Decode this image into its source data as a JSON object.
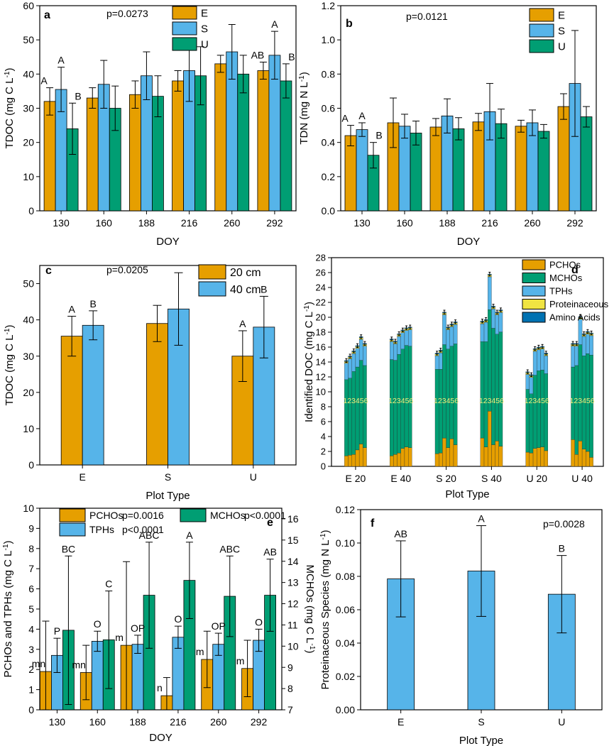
{
  "colors": {
    "E": "#E69F00",
    "S": "#56B4E9",
    "U": "#009E73",
    "PCHOs": "#E69F00",
    "MCHOs": "#009E73",
    "TPHs": "#56B4E9",
    "Proteinaceous": "#F0E442",
    "AminoAcids": "#0072B2"
  },
  "chart_data": [
    {
      "panel": "a",
      "type": "bar",
      "pvalue": "p=0.0273",
      "xlabel": "DOY",
      "ylabel": "TDOC (mg C L",
      "ylabel_sup": "-1",
      "ylabel_end": ")",
      "ylim": [
        0,
        60
      ],
      "yticks": [
        "0",
        "10",
        "20",
        "30",
        "40",
        "50",
        "60"
      ],
      "categories": [
        "130",
        "160",
        "188",
        "216",
        "260",
        "292"
      ],
      "series": [
        {
          "name": "E",
          "values": [
            32,
            33,
            34,
            38,
            43,
            41
          ],
          "errors": [
            4,
            3,
            4,
            3,
            2.5,
            2.5
          ]
        },
        {
          "name": "S",
          "values": [
            35.5,
            37,
            39.5,
            41,
            46.5,
            45.5
          ],
          "errors": [
            6.5,
            7,
            7,
            9,
            8,
            7
          ]
        },
        {
          "name": "U",
          "values": [
            24,
            30,
            33.5,
            39.5,
            40,
            38
          ],
          "errors": [
            7.5,
            6.5,
            6,
            8.5,
            5.5,
            5
          ]
        }
      ],
      "letters": [
        {
          "cat": 0,
          "series": 0,
          "text": "A"
        },
        {
          "cat": 0,
          "series": 1,
          "text": "A"
        },
        {
          "cat": 0,
          "series": 2,
          "text": "B"
        },
        {
          "cat": 5,
          "series": 0,
          "text": "AB"
        },
        {
          "cat": 5,
          "series": 1,
          "text": "A"
        },
        {
          "cat": 5,
          "series": 2,
          "text": "B"
        }
      ]
    },
    {
      "panel": "b",
      "type": "bar",
      "pvalue": "p=0.0121",
      "xlabel": "DOY",
      "ylabel": "TDN (mg N L",
      "ylabel_sup": "-1",
      "ylabel_end": ")",
      "ylim": [
        0,
        1.2
      ],
      "yticks": [
        "0.0",
        "0.2",
        "0.4",
        "0.6",
        "0.8",
        "1.0",
        "1.2"
      ],
      "categories": [
        "130",
        "160",
        "188",
        "216",
        "260",
        "292"
      ],
      "series": [
        {
          "name": "E",
          "values": [
            0.44,
            0.515,
            0.49,
            0.52,
            0.495,
            0.61
          ],
          "errors": [
            0.06,
            0.145,
            0.05,
            0.05,
            0.035,
            0.075
          ]
        },
        {
          "name": "S",
          "values": [
            0.475,
            0.495,
            0.555,
            0.58,
            0.515,
            0.745
          ],
          "errors": [
            0.04,
            0.07,
            0.1,
            0.165,
            0.075,
            0.31
          ]
        },
        {
          "name": "U",
          "values": [
            0.325,
            0.455,
            0.48,
            0.51,
            0.465,
            0.55
          ],
          "errors": [
            0.075,
            0.07,
            0.065,
            0.085,
            0.04,
            0.06
          ]
        }
      ],
      "letters": [
        {
          "cat": 0,
          "series": 0,
          "text": "A"
        },
        {
          "cat": 0,
          "series": 1,
          "text": "A"
        },
        {
          "cat": 0,
          "series": 2,
          "text": "B"
        }
      ]
    },
    {
      "panel": "c",
      "type": "bar",
      "pvalue": "p=0.0205",
      "xlabel": "Plot Type",
      "ylabel": "TDOC (mg C L",
      "ylabel_sup": "-1",
      "ylabel_end": ")",
      "ylim": [
        0,
        55
      ],
      "yticks": [
        "0",
        "10",
        "20",
        "30",
        "40",
        "50"
      ],
      "categories": [
        "E",
        "S",
        "U"
      ],
      "series": [
        {
          "name": "20 cm",
          "values": [
            35.5,
            39,
            30
          ],
          "errors": [
            5.5,
            5,
            7
          ]
        },
        {
          "name": "40 cm",
          "values": [
            38.5,
            43,
            38
          ],
          "errors": [
            4,
            10,
            8.5
          ]
        }
      ],
      "letters": [
        {
          "cat": 0,
          "series": 0,
          "text": "A"
        },
        {
          "cat": 0,
          "series": 1,
          "text": "B"
        },
        {
          "cat": 2,
          "series": 0,
          "text": "A"
        },
        {
          "cat": 2,
          "series": 1,
          "text": "B"
        }
      ]
    },
    {
      "panel": "d",
      "type": "bar",
      "subtype": "stacked",
      "xlabel": "Plot Type",
      "ylabel": "Identified DOC (mg C L",
      "ylabel_sup": "-1",
      "ylabel_end": ")",
      "ylim": [
        0,
        28
      ],
      "yticks": [
        "0",
        "2",
        "4",
        "6",
        "8",
        "10",
        "12",
        "14",
        "16",
        "18",
        "20",
        "22",
        "24",
        "26",
        "28"
      ],
      "categories": [
        "E 20",
        "E 40",
        "S 20",
        "S 40",
        "U 20",
        "U 40"
      ],
      "inner_label": "123456",
      "legend": [
        "PCHOs",
        "MCHOs",
        "TPHs",
        "Proteinaceous",
        "Amino Acids"
      ],
      "totals": [
        [
          14.2,
          14.8,
          15.5,
          16.2,
          17.4,
          16.5
        ],
        [
          17.1,
          16.8,
          17.8,
          18.3,
          18.6,
          18.7
        ],
        [
          15.2,
          15.6,
          20.7,
          18.7,
          19.1,
          19.4
        ],
        [
          19.5,
          19.7,
          25.8,
          21.5,
          20.7,
          21.0
        ],
        [
          12.7,
          12.3,
          15.8,
          16.0,
          16.1,
          15.2
        ],
        [
          16.5,
          16.5,
          20.1,
          17.8,
          18.1,
          17.9
        ]
      ],
      "pchos": [
        [
          1.4,
          1.5,
          1.6,
          2.2,
          3.0,
          2.5
        ],
        [
          1.4,
          1.6,
          1.8,
          2.4,
          2.6,
          2.5
        ],
        [
          1.7,
          1.8,
          3.8,
          2.5,
          3.7,
          2.9
        ],
        [
          3.8,
          2.6,
          7.4,
          2.9,
          3.4,
          2.7
        ],
        [
          1.9,
          1.8,
          2.4,
          2.5,
          2.6,
          2.1
        ],
        [
          3.6,
          1.6,
          3.4,
          2.3,
          2.0,
          1.2
        ]
      ],
      "tphs": [
        [
          2.2,
          2.6,
          2.4,
          2.5,
          2.8,
          2.6
        ],
        [
          2.4,
          2.2,
          2.4,
          2.2,
          2.0,
          2.2
        ],
        [
          1.8,
          2.2,
          4.0,
          2.6,
          2.6,
          2.6
        ],
        [
          2.4,
          2.6,
          4.4,
          2.6,
          2.6,
          2.6
        ],
        [
          2.0,
          2.2,
          3.2,
          2.8,
          2.8,
          2.4
        ],
        [
          2.8,
          2.6,
          3.4,
          2.6,
          2.6,
          2.6
        ]
      ]
    },
    {
      "panel": "e",
      "type": "bar",
      "xlabel": "DOY",
      "ylabel": "PCHOs and TPHs (mg C L",
      "ylabel_sup": "-1",
      "ylabel_end": ")",
      "y2label": "MCHOs (mg C L",
      "y2label_sup": "-1",
      "y2label_end": ")",
      "ylim": [
        0,
        10
      ],
      "yticks": [
        "0",
        "1",
        "2",
        "3",
        "4",
        "5",
        "6",
        "7",
        "8",
        "9",
        "10"
      ],
      "y2lim": [
        7,
        16.5
      ],
      "y2ticks": [
        "7",
        "8",
        "9",
        "10",
        "11",
        "12",
        "13",
        "14",
        "15",
        "16"
      ],
      "categories": [
        "130",
        "160",
        "188",
        "216",
        "260",
        "292"
      ],
      "legend_p": {
        "PCHOs": "p=0.0016",
        "MCHOs": "p<0.0001",
        "TPHs": "p<0.0001"
      },
      "series": [
        {
          "name": "PCHOs",
          "axis": "left",
          "values": [
            1.9,
            1.85,
            3.2,
            0.7,
            2.5,
            2.05
          ],
          "errors": [
            2.5,
            1.35,
            4.15,
            0.9,
            1.4,
            1.4
          ]
        },
        {
          "name": "TPHs",
          "axis": "left",
          "values": [
            2.7,
            3.4,
            3.25,
            3.6,
            3.25,
            3.45
          ],
          "errors": [
            0.85,
            0.5,
            0.45,
            0.55,
            0.55,
            0.55
          ]
        },
        {
          "name": "MCHOs",
          "axis": "right",
          "values": [
            10.75,
            10.3,
            12.4,
            13.1,
            12.35,
            12.4
          ],
          "errors": [
            3.5,
            2.3,
            2.5,
            1.8,
            1.9,
            1.7
          ]
        }
      ],
      "letters": [
        {
          "cat": 0,
          "series": 0,
          "text": "mn"
        },
        {
          "cat": 0,
          "series": 1,
          "text": "P"
        },
        {
          "cat": 0,
          "series": 2,
          "text": "BC"
        },
        {
          "cat": 1,
          "series": 0,
          "text": "mn"
        },
        {
          "cat": 1,
          "series": 1,
          "text": "O"
        },
        {
          "cat": 1,
          "series": 2,
          "text": "C"
        },
        {
          "cat": 2,
          "series": 0,
          "text": "m"
        },
        {
          "cat": 2,
          "series": 1,
          "text": "OP"
        },
        {
          "cat": 2,
          "series": 2,
          "text": "ABC"
        },
        {
          "cat": 3,
          "series": 0,
          "text": "n"
        },
        {
          "cat": 3,
          "series": 1,
          "text": "O"
        },
        {
          "cat": 3,
          "series": 2,
          "text": "A"
        },
        {
          "cat": 4,
          "series": 0,
          "text": "m"
        },
        {
          "cat": 4,
          "series": 1,
          "text": "OP"
        },
        {
          "cat": 4,
          "series": 2,
          "text": "ABC"
        },
        {
          "cat": 5,
          "series": 0,
          "text": "m"
        },
        {
          "cat": 5,
          "series": 1,
          "text": "O"
        },
        {
          "cat": 5,
          "series": 2,
          "text": "AB"
        }
      ]
    },
    {
      "panel": "f",
      "type": "bar",
      "pvalue": "p=0.0028",
      "xlabel": "Plot Type",
      "ylabel": "Proteinaceous Species (mg N L",
      "ylabel_sup": "-1",
      "ylabel_end": ")",
      "ylim": [
        0,
        0.12
      ],
      "yticks": [
        "0.00",
        "0.02",
        "0.04",
        "0.06",
        "0.08",
        "0.10",
        "0.12"
      ],
      "categories": [
        "E",
        "S",
        "U"
      ],
      "series": [
        {
          "name": "Proteinaceous",
          "values": [
            0.0785,
            0.0832,
            0.0693
          ],
          "errors": [
            0.0228,
            0.0272,
            0.0232
          ]
        }
      ],
      "letters": [
        {
          "cat": 0,
          "series": 0,
          "text": "AB"
        },
        {
          "cat": 1,
          "series": 0,
          "text": "A"
        },
        {
          "cat": 2,
          "series": 0,
          "text": "B"
        }
      ]
    }
  ]
}
